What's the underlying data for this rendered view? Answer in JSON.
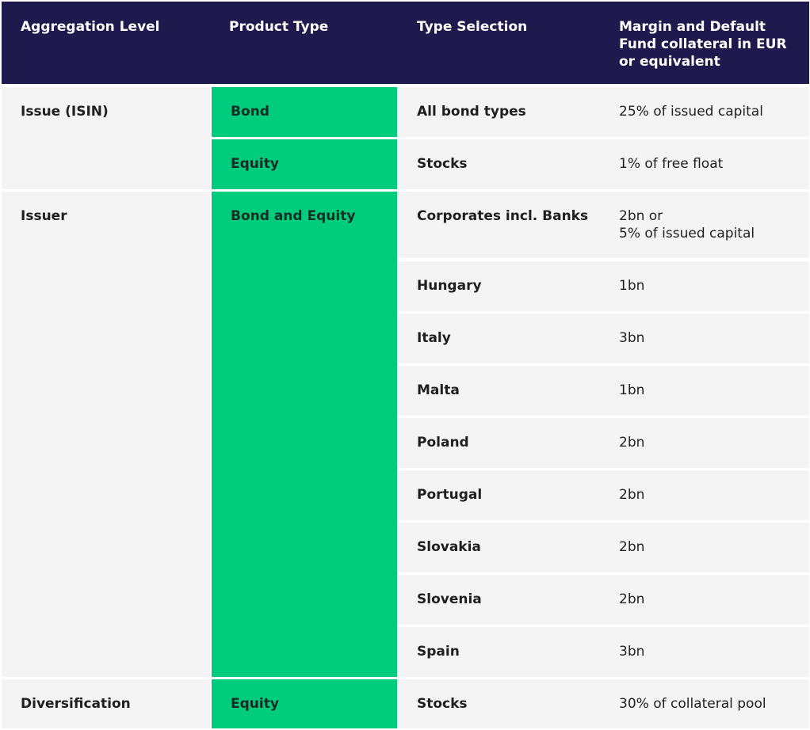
{
  "header": {
    "aggregation_level": "Aggregation Level",
    "product_type": "Product Type",
    "type_selection": "Type Selection",
    "margin": "Margin and Default\nFund collateral in EUR\nor equivalent"
  },
  "groups": [
    {
      "aggregation_level": "Issue (ISIN)"
    },
    {
      "aggregation_level": "Issuer"
    },
    {
      "aggregation_level": "Diversification"
    }
  ],
  "rows": [
    {
      "product_type": "Bond",
      "type_selection": "All bond types",
      "margin": "25% of issued capital"
    },
    {
      "product_type": "Equity",
      "type_selection": "Stocks",
      "margin": "1% of free float"
    },
    {
      "product_type": "Bond and Equity",
      "type_selection": "Corporates incl. Banks",
      "margin": "2bn or\n5% of issued capital"
    },
    {
      "type_selection": "Hungary",
      "margin": "1bn"
    },
    {
      "type_selection": "Italy",
      "margin": "3bn"
    },
    {
      "type_selection": "Malta",
      "margin": "1bn"
    },
    {
      "type_selection": "Poland",
      "margin": "2bn"
    },
    {
      "type_selection": "Portugal",
      "margin": "2bn"
    },
    {
      "type_selection": "Slovakia",
      "margin": "2bn"
    },
    {
      "type_selection": "Slovenia",
      "margin": "2bn"
    },
    {
      "type_selection": "Spain",
      "margin": "3bn"
    },
    {
      "product_type": "Equity",
      "type_selection": "Stocks",
      "margin": "30% of collateral pool"
    }
  ],
  "colors": {
    "header_bg": "#1e1a4d",
    "green": "#00cc7e",
    "row_bg": "#f4f4f4"
  }
}
